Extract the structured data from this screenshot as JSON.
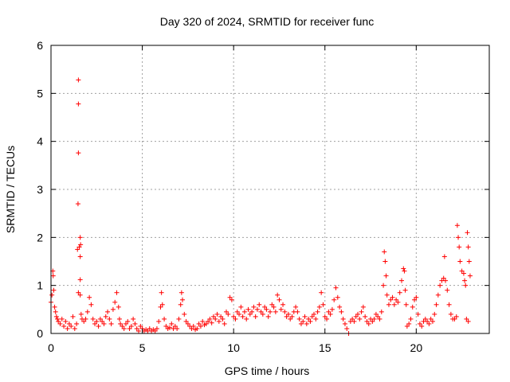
{
  "chart_data": {
    "type": "scatter",
    "title": "Day 320 of 2024, SRMTID for receiver func",
    "xlabel": "GPS time / hours",
    "ylabel": "SRMTID / TECUs",
    "xlim": [
      0,
      24
    ],
    "ylim": [
      0,
      6
    ],
    "xticks": [
      0,
      5,
      10,
      15,
      20
    ],
    "yticks": [
      0,
      1,
      2,
      3,
      4,
      5,
      6
    ],
    "grid": true,
    "marker": "+",
    "series": [
      {
        "name": "SRMTID",
        "color": "#ff0000",
        "points": [
          [
            0.0,
            0.65
          ],
          [
            0.05,
            0.8
          ],
          [
            0.1,
            1.3
          ],
          [
            0.12,
            1.2
          ],
          [
            0.15,
            0.9
          ],
          [
            0.2,
            0.55
          ],
          [
            0.25,
            0.45
          ],
          [
            0.3,
            0.35
          ],
          [
            0.35,
            0.3
          ],
          [
            0.4,
            0.25
          ],
          [
            0.5,
            0.2
          ],
          [
            0.6,
            0.3
          ],
          [
            0.7,
            0.15
          ],
          [
            0.8,
            0.25
          ],
          [
            0.9,
            0.1
          ],
          [
            1.0,
            0.2
          ],
          [
            1.1,
            0.15
          ],
          [
            1.2,
            0.35
          ],
          [
            1.3,
            0.1
          ],
          [
            1.4,
            0.2
          ],
          [
            1.5,
            5.28
          ],
          [
            1.5,
            4.78
          ],
          [
            1.5,
            3.76
          ],
          [
            1.48,
            2.7
          ],
          [
            1.45,
            1.75
          ],
          [
            1.55,
            1.8
          ],
          [
            1.6,
            2.0
          ],
          [
            1.62,
            1.85
          ],
          [
            1.6,
            1.6
          ],
          [
            1.6,
            1.12
          ],
          [
            1.5,
            0.85
          ],
          [
            1.6,
            0.8
          ],
          [
            1.65,
            0.4
          ],
          [
            1.7,
            0.3
          ],
          [
            1.8,
            0.25
          ],
          [
            1.9,
            0.3
          ],
          [
            2.0,
            0.45
          ],
          [
            2.1,
            0.75
          ],
          [
            2.2,
            0.6
          ],
          [
            2.3,
            0.3
          ],
          [
            2.4,
            0.2
          ],
          [
            2.5,
            0.25
          ],
          [
            2.6,
            0.15
          ],
          [
            2.7,
            0.3
          ],
          [
            2.8,
            0.25
          ],
          [
            2.9,
            0.2
          ],
          [
            3.0,
            0.35
          ],
          [
            3.1,
            0.45
          ],
          [
            3.2,
            0.3
          ],
          [
            3.3,
            0.2
          ],
          [
            3.4,
            0.5
          ],
          [
            3.5,
            0.65
          ],
          [
            3.6,
            0.85
          ],
          [
            3.7,
            0.55
          ],
          [
            3.75,
            0.3
          ],
          [
            3.8,
            0.2
          ],
          [
            3.9,
            0.15
          ],
          [
            4.0,
            0.1
          ],
          [
            4.1,
            0.2
          ],
          [
            4.2,
            0.25
          ],
          [
            4.3,
            0.1
          ],
          [
            4.4,
            0.15
          ],
          [
            4.5,
            0.3
          ],
          [
            4.6,
            0.2
          ],
          [
            4.7,
            0.1
          ],
          [
            4.8,
            0.05
          ],
          [
            4.9,
            0.15
          ],
          [
            5.0,
            0.1
          ],
          [
            5.1,
            0.05
          ],
          [
            5.2,
            0.08
          ],
          [
            5.3,
            0.05
          ],
          [
            5.4,
            0.1
          ],
          [
            5.5,
            0.05
          ],
          [
            5.6,
            0.08
          ],
          [
            5.7,
            0.05
          ],
          [
            5.8,
            0.1
          ],
          [
            5.9,
            0.25
          ],
          [
            6.0,
            0.55
          ],
          [
            6.05,
            0.85
          ],
          [
            6.1,
            0.6
          ],
          [
            6.2,
            0.3
          ],
          [
            6.3,
            0.15
          ],
          [
            6.4,
            0.1
          ],
          [
            6.5,
            0.12
          ],
          [
            6.6,
            0.2
          ],
          [
            6.7,
            0.1
          ],
          [
            6.8,
            0.15
          ],
          [
            6.9,
            0.1
          ],
          [
            7.0,
            0.3
          ],
          [
            7.1,
            0.6
          ],
          [
            7.15,
            0.85
          ],
          [
            7.2,
            0.7
          ],
          [
            7.3,
            0.4
          ],
          [
            7.4,
            0.25
          ],
          [
            7.5,
            0.2
          ],
          [
            7.6,
            0.15
          ],
          [
            7.7,
            0.1
          ],
          [
            7.8,
            0.15
          ],
          [
            7.9,
            0.08
          ],
          [
            8.0,
            0.1
          ],
          [
            8.1,
            0.2
          ],
          [
            8.2,
            0.15
          ],
          [
            8.3,
            0.25
          ],
          [
            8.4,
            0.18
          ],
          [
            8.5,
            0.2
          ],
          [
            8.6,
            0.25
          ],
          [
            8.7,
            0.3
          ],
          [
            8.8,
            0.22
          ],
          [
            8.9,
            0.35
          ],
          [
            9.0,
            0.3
          ],
          [
            9.1,
            0.4
          ],
          [
            9.2,
            0.25
          ],
          [
            9.3,
            0.35
          ],
          [
            9.4,
            0.3
          ],
          [
            9.5,
            0.2
          ],
          [
            9.6,
            0.45
          ],
          [
            9.7,
            0.4
          ],
          [
            9.8,
            0.75
          ],
          [
            9.9,
            0.7
          ],
          [
            10.0,
            0.35
          ],
          [
            10.1,
            0.3
          ],
          [
            10.2,
            0.45
          ],
          [
            10.3,
            0.4
          ],
          [
            10.4,
            0.55
          ],
          [
            10.5,
            0.35
          ],
          [
            10.6,
            0.45
          ],
          [
            10.7,
            0.3
          ],
          [
            10.8,
            0.5
          ],
          [
            10.9,
            0.4
          ],
          [
            11.0,
            0.45
          ],
          [
            11.1,
            0.55
          ],
          [
            11.2,
            0.35
          ],
          [
            11.3,
            0.5
          ],
          [
            11.4,
            0.6
          ],
          [
            11.5,
            0.45
          ],
          [
            11.6,
            0.4
          ],
          [
            11.7,
            0.55
          ],
          [
            11.8,
            0.5
          ],
          [
            11.9,
            0.35
          ],
          [
            12.0,
            0.45
          ],
          [
            12.1,
            0.6
          ],
          [
            12.2,
            0.55
          ],
          [
            12.3,
            0.45
          ],
          [
            12.4,
            0.8
          ],
          [
            12.5,
            0.7
          ],
          [
            12.6,
            0.5
          ],
          [
            12.7,
            0.6
          ],
          [
            12.8,
            0.45
          ],
          [
            12.9,
            0.35
          ],
          [
            13.0,
            0.4
          ],
          [
            13.1,
            0.3
          ],
          [
            13.2,
            0.35
          ],
          [
            13.3,
            0.45
          ],
          [
            13.4,
            0.55
          ],
          [
            13.5,
            0.45
          ],
          [
            13.6,
            0.3
          ],
          [
            13.7,
            0.2
          ],
          [
            13.8,
            0.25
          ],
          [
            13.9,
            0.35
          ],
          [
            14.0,
            0.2
          ],
          [
            14.1,
            0.3
          ],
          [
            14.2,
            0.25
          ],
          [
            14.3,
            0.35
          ],
          [
            14.4,
            0.4
          ],
          [
            14.5,
            0.3
          ],
          [
            14.6,
            0.45
          ],
          [
            14.7,
            0.55
          ],
          [
            14.8,
            0.85
          ],
          [
            14.9,
            0.6
          ],
          [
            15.0,
            0.35
          ],
          [
            15.1,
            0.3
          ],
          [
            15.2,
            0.45
          ],
          [
            15.3,
            0.4
          ],
          [
            15.4,
            0.5
          ],
          [
            15.5,
            0.7
          ],
          [
            15.6,
            0.95
          ],
          [
            15.7,
            0.75
          ],
          [
            15.8,
            0.55
          ],
          [
            15.9,
            0.45
          ],
          [
            16.0,
            0.3
          ],
          [
            16.1,
            0.2
          ],
          [
            16.2,
            0.1
          ],
          [
            16.3,
            0.0
          ],
          [
            16.4,
            0.25
          ],
          [
            16.5,
            0.3
          ],
          [
            16.6,
            0.25
          ],
          [
            16.7,
            0.35
          ],
          [
            16.8,
            0.4
          ],
          [
            16.9,
            0.3
          ],
          [
            17.0,
            0.45
          ],
          [
            17.1,
            0.55
          ],
          [
            17.2,
            0.35
          ],
          [
            17.3,
            0.25
          ],
          [
            17.4,
            0.2
          ],
          [
            17.5,
            0.3
          ],
          [
            17.6,
            0.25
          ],
          [
            17.7,
            0.3
          ],
          [
            17.8,
            0.4
          ],
          [
            17.9,
            0.35
          ],
          [
            18.0,
            0.3
          ],
          [
            18.1,
            0.45
          ],
          [
            18.2,
            1.0
          ],
          [
            18.25,
            1.7
          ],
          [
            18.3,
            1.5
          ],
          [
            18.35,
            1.2
          ],
          [
            18.4,
            0.8
          ],
          [
            18.5,
            0.6
          ],
          [
            18.6,
            0.7
          ],
          [
            18.7,
            0.75
          ],
          [
            18.8,
            0.6
          ],
          [
            18.9,
            0.7
          ],
          [
            19.0,
            0.65
          ],
          [
            19.1,
            0.85
          ],
          [
            19.2,
            1.1
          ],
          [
            19.3,
            1.35
          ],
          [
            19.35,
            1.3
          ],
          [
            19.4,
            0.9
          ],
          [
            19.45,
            0.6
          ],
          [
            19.5,
            0.15
          ],
          [
            19.6,
            0.2
          ],
          [
            19.7,
            0.3
          ],
          [
            19.8,
            0.55
          ],
          [
            19.9,
            0.7
          ],
          [
            20.0,
            0.75
          ],
          [
            20.1,
            0.4
          ],
          [
            20.2,
            0.2
          ],
          [
            20.3,
            0.15
          ],
          [
            20.4,
            0.25
          ],
          [
            20.5,
            0.3
          ],
          [
            20.6,
            0.25
          ],
          [
            20.7,
            0.2
          ],
          [
            20.8,
            0.3
          ],
          [
            20.9,
            0.25
          ],
          [
            21.0,
            0.4
          ],
          [
            21.1,
            0.6
          ],
          [
            21.2,
            0.8
          ],
          [
            21.3,
            1.0
          ],
          [
            21.4,
            1.1
          ],
          [
            21.5,
            1.15
          ],
          [
            21.55,
            1.6
          ],
          [
            21.6,
            1.1
          ],
          [
            21.7,
            0.9
          ],
          [
            21.8,
            0.6
          ],
          [
            21.9,
            0.4
          ],
          [
            22.0,
            0.3
          ],
          [
            22.1,
            0.3
          ],
          [
            22.2,
            0.35
          ],
          [
            22.25,
            2.25
          ],
          [
            22.3,
            2.0
          ],
          [
            22.35,
            1.8
          ],
          [
            22.4,
            1.5
          ],
          [
            22.5,
            1.3
          ],
          [
            22.6,
            1.25
          ],
          [
            22.65,
            1.1
          ],
          [
            22.7,
            1.0
          ],
          [
            22.75,
            0.3
          ],
          [
            22.8,
            2.1
          ],
          [
            22.85,
            1.8
          ],
          [
            22.9,
            1.5
          ],
          [
            22.95,
            1.2
          ],
          [
            22.85,
            0.25
          ]
        ]
      }
    ]
  }
}
